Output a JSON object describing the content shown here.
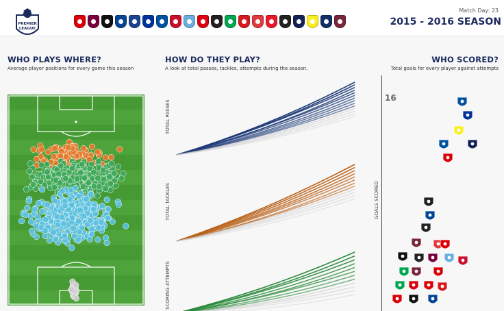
{
  "header": {
    "logo_text": "PREMIER LEAGUE",
    "matchday_label": "Match Day: 23",
    "season_title": "2015 - 2016 SEASON",
    "teams": [
      {
        "name": "arsenal",
        "color": "#db0007"
      },
      {
        "name": "aston-villa",
        "color": "#7a003c"
      },
      {
        "name": "bournemouth",
        "color": "#111111"
      },
      {
        "name": "chelsea",
        "color": "#034694"
      },
      {
        "name": "crystal-palace",
        "color": "#1b458f"
      },
      {
        "name": "everton",
        "color": "#003399"
      },
      {
        "name": "leicester",
        "color": "#0053a0"
      },
      {
        "name": "liverpool",
        "color": "#c8102e"
      },
      {
        "name": "man-city",
        "color": "#6caee0"
      },
      {
        "name": "man-united",
        "color": "#da020e"
      },
      {
        "name": "newcastle",
        "color": "#241f20"
      },
      {
        "name": "norwich",
        "color": "#00a650"
      },
      {
        "name": "southampton",
        "color": "#d71920"
      },
      {
        "name": "stoke",
        "color": "#e03a3e"
      },
      {
        "name": "sunderland",
        "color": "#eb172b"
      },
      {
        "name": "swansea",
        "color": "#222222"
      },
      {
        "name": "tottenham",
        "color": "#132257"
      },
      {
        "name": "watford",
        "color": "#fbee23"
      },
      {
        "name": "west-brom",
        "color": "#122f67"
      },
      {
        "name": "west-ham",
        "color": "#7a263a"
      }
    ]
  },
  "where": {
    "title": "WHO PLAYS WHERE?",
    "subtitle": "Average player positions for every game this season"
  },
  "how": {
    "title": "HOW DO THEY PLAY?",
    "subtitle": "A look at total passes, tackles, attempts during the season.",
    "labels": [
      "TOTAL PASSES",
      "TOTAL TACKLES",
      "SCORING ATTEMPTS"
    ]
  },
  "scored": {
    "title": "WHO SCORED?",
    "subtitle": "Total goals for every player against attempts",
    "ylabel": "GOALS SCORED",
    "max_label": "16"
  },
  "colors": {
    "navy": "#1b2a5c",
    "passes": "#1d3a78",
    "tackles": "#b8621a",
    "attempts": "#2a8a3a",
    "pitch": "#4aa339",
    "forward": "#e57b2b",
    "midfield": "#3ea85a",
    "defender": "#5bc0de",
    "keeper": "#cccccc"
  }
}
